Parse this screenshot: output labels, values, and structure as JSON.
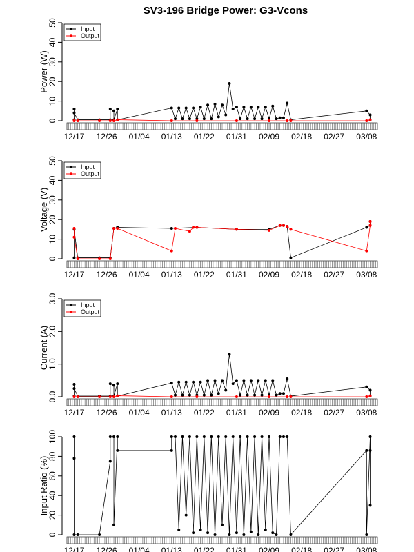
{
  "figure_title": "SV3-196 Bridge Power: G3-Vcons",
  "colors": {
    "input": "#000000",
    "output": "#ff0000",
    "axis": "#000000",
    "tickband": "#555555"
  },
  "chart_data": [
    {
      "type": "line",
      "title": "SV3-196 Bridge Power: G3-Vcons",
      "ylabel": "Power (W)",
      "xlabel": "",
      "x_tick_labels": [
        "12/17",
        "12/26",
        "01/04",
        "01/13",
        "01/22",
        "01/31",
        "02/09",
        "02/18",
        "02/27",
        "03/08"
      ],
      "xlim": [
        "12/15",
        "03/11"
      ],
      "ylim": [
        0,
        50
      ],
      "y_ticks": [
        0,
        10,
        20,
        30,
        40,
        50
      ],
      "legend": {
        "position": "top-left",
        "entries": [
          "Input",
          "Output"
        ]
      },
      "series": [
        {
          "name": "Input",
          "color": "#000000",
          "x": [
            "12/17",
            "12/17",
            "12/17",
            "12/18",
            "12/24",
            "12/27",
            "12/27",
            "12/28",
            "12/28",
            "12/29",
            "12/29",
            "01/13",
            "01/14",
            "01/15",
            "01/16",
            "01/17",
            "01/18",
            "01/19",
            "01/20",
            "01/21",
            "01/22",
            "01/23",
            "01/24",
            "01/25",
            "01/26",
            "01/27",
            "01/28",
            "01/29",
            "01/30",
            "01/31",
            "02/01",
            "02/02",
            "02/03",
            "02/04",
            "02/05",
            "02/06",
            "02/07",
            "02/08",
            "02/09",
            "02/10",
            "02/11",
            "02/12",
            "02/13",
            "02/14",
            "02/15",
            "03/08",
            "03/09",
            "03/09"
          ],
          "y": [
            0.5,
            6,
            4,
            0.5,
            0.5,
            0.5,
            6,
            5,
            0.5,
            6,
            0.5,
            6.5,
            1,
            6.5,
            1,
            6.5,
            1,
            6.5,
            1,
            7,
            1,
            8,
            1,
            8.5,
            2,
            8,
            3,
            19,
            6,
            7,
            1,
            7,
            1,
            7,
            1,
            7,
            1,
            7,
            1,
            7.5,
            1,
            1.5,
            1.5,
            9,
            0.5,
            5,
            3,
            0.5
          ]
        },
        {
          "name": "Output",
          "color": "#ff0000",
          "x": [
            "12/17",
            "12/18",
            "12/24",
            "12/27",
            "12/28",
            "12/29",
            "01/13",
            "01/20",
            "01/31",
            "02/09",
            "02/14",
            "02/15",
            "03/08",
            "03/09"
          ],
          "y": [
            0,
            0,
            0,
            0,
            0,
            0.5,
            0,
            0,
            0,
            0,
            0,
            0,
            0,
            0.5
          ]
        }
      ]
    },
    {
      "type": "line",
      "title": "",
      "ylabel": "Voltage (V)",
      "xlabel": "",
      "x_tick_labels": [
        "12/17",
        "12/26",
        "01/04",
        "01/13",
        "01/22",
        "01/31",
        "02/09",
        "02/18",
        "02/27",
        "03/08"
      ],
      "xlim": [
        "12/15",
        "03/11"
      ],
      "ylim": [
        0,
        50
      ],
      "y_ticks": [
        0,
        10,
        20,
        30,
        40,
        50
      ],
      "legend": {
        "position": "top-left",
        "entries": [
          "Input",
          "Output"
        ]
      },
      "series": [
        {
          "name": "Input",
          "color": "#000000",
          "x": [
            "12/17",
            "12/17",
            "12/18",
            "12/24",
            "12/27",
            "12/28",
            "12/29",
            "01/13",
            "01/20",
            "01/31",
            "02/09",
            "02/12",
            "02/13",
            "02/14",
            "02/15",
            "03/08",
            "03/09",
            "03/09"
          ],
          "y": [
            0.5,
            15,
            0.5,
            0.5,
            0.5,
            15.5,
            16,
            15.5,
            16,
            15,
            15,
            17,
            17,
            16.5,
            0.5,
            16,
            17,
            19
          ]
        },
        {
          "name": "Output",
          "color": "#ff0000",
          "x": [
            "12/17",
            "12/17",
            "12/18",
            "12/24",
            "12/27",
            "12/28",
            "12/29",
            "01/13",
            "01/14",
            "01/18",
            "01/19",
            "01/20",
            "01/31",
            "02/09",
            "02/12",
            "02/13",
            "02/14",
            "02/15",
            "03/08",
            "03/09",
            "03/09"
          ],
          "y": [
            15.5,
            11,
            0,
            0,
            0,
            15.5,
            15.5,
            4,
            15.5,
            14,
            16,
            16,
            15,
            14.5,
            17,
            17,
            16.5,
            15,
            4,
            17,
            19
          ]
        }
      ]
    },
    {
      "type": "line",
      "title": "",
      "ylabel": "Current (A)",
      "xlabel": "",
      "x_tick_labels": [
        "12/17",
        "12/26",
        "01/04",
        "01/13",
        "01/22",
        "01/31",
        "02/09",
        "02/18",
        "02/27",
        "03/08"
      ],
      "xlim": [
        "12/15",
        "03/11"
      ],
      "ylim": [
        0,
        3.0
      ],
      "y_ticks": [
        0.0,
        1.0,
        2.0,
        3.0
      ],
      "legend": {
        "position": "top-left",
        "entries": [
          "Input",
          "Output"
        ]
      },
      "series": [
        {
          "name": "Input",
          "color": "#000000",
          "x": [
            "12/17",
            "12/17",
            "12/17",
            "12/18",
            "12/24",
            "12/27",
            "12/27",
            "12/28",
            "12/28",
            "12/29",
            "12/29",
            "01/13",
            "01/14",
            "01/15",
            "01/16",
            "01/17",
            "01/18",
            "01/19",
            "01/20",
            "01/21",
            "01/22",
            "01/23",
            "01/24",
            "01/25",
            "01/26",
            "01/27",
            "01/28",
            "01/29",
            "01/30",
            "01/31",
            "02/01",
            "02/02",
            "02/03",
            "02/04",
            "02/05",
            "02/06",
            "02/07",
            "02/08",
            "02/09",
            "02/10",
            "02/11",
            "02/12",
            "02/13",
            "02/14",
            "02/15",
            "03/08",
            "03/09",
            "03/09"
          ],
          "y": [
            0.02,
            0.38,
            0.25,
            0.02,
            0.02,
            0.02,
            0.4,
            0.35,
            0.02,
            0.4,
            0.02,
            0.42,
            0.05,
            0.45,
            0.05,
            0.45,
            0.05,
            0.45,
            0.05,
            0.45,
            0.05,
            0.5,
            0.05,
            0.5,
            0.1,
            0.5,
            0.2,
            1.3,
            0.4,
            0.5,
            0.05,
            0.5,
            0.05,
            0.5,
            0.05,
            0.5,
            0.05,
            0.5,
            0.05,
            0.5,
            0.05,
            0.1,
            0.1,
            0.55,
            0.02,
            0.3,
            0.2,
            0.02
          ]
        },
        {
          "name": "Output",
          "color": "#ff0000",
          "x": [
            "12/17",
            "12/18",
            "12/24",
            "12/27",
            "12/28",
            "12/29",
            "01/13",
            "01/20",
            "01/31",
            "02/09",
            "02/14",
            "02/15",
            "03/08",
            "03/09"
          ],
          "y": [
            0,
            0,
            0,
            0,
            0,
            0.03,
            0,
            0,
            0,
            0,
            0,
            0,
            0,
            0.03
          ]
        }
      ]
    },
    {
      "type": "line",
      "title": "",
      "ylabel": "Input Ratio (%)",
      "xlabel": "",
      "x_tick_labels": [
        "12/17",
        "12/26",
        "01/04",
        "01/13",
        "01/22",
        "01/31",
        "02/09",
        "02/18",
        "02/27",
        "03/08"
      ],
      "xlim": [
        "12/15",
        "03/11"
      ],
      "ylim": [
        0,
        100
      ],
      "y_ticks": [
        0,
        20,
        40,
        60,
        80,
        100
      ],
      "legend": null,
      "series": [
        {
          "name": "",
          "color": "#000000",
          "x": [
            "12/17",
            "12/17",
            "12/17",
            "12/18",
            "12/24",
            "12/27",
            "12/27",
            "12/28",
            "12/28",
            "12/29",
            "12/29",
            "01/13",
            "01/13",
            "01/14",
            "01/15",
            "01/16",
            "01/17",
            "01/18",
            "01/19",
            "01/20",
            "01/21",
            "01/22",
            "01/23",
            "01/24",
            "01/25",
            "01/26",
            "01/27",
            "01/28",
            "01/29",
            "01/30",
            "01/31",
            "02/01",
            "02/02",
            "02/03",
            "02/04",
            "02/05",
            "02/06",
            "02/07",
            "02/08",
            "02/09",
            "02/10",
            "02/11",
            "02/12",
            "02/13",
            "02/14",
            "02/15",
            "03/08",
            "03/08",
            "03/09",
            "03/09",
            "03/09"
          ],
          "y": [
            100,
            78,
            0,
            0,
            0,
            75,
            100,
            100,
            10,
            100,
            86,
            86,
            100,
            100,
            5,
            100,
            20,
            100,
            2,
            100,
            5,
            100,
            2,
            100,
            0,
            100,
            10,
            100,
            0,
            100,
            2,
            100,
            0,
            100,
            3,
            100,
            0,
            100,
            5,
            100,
            2,
            0,
            100,
            100,
            100,
            0,
            86,
            0,
            100,
            30,
            86
          ]
        }
      ]
    }
  ]
}
